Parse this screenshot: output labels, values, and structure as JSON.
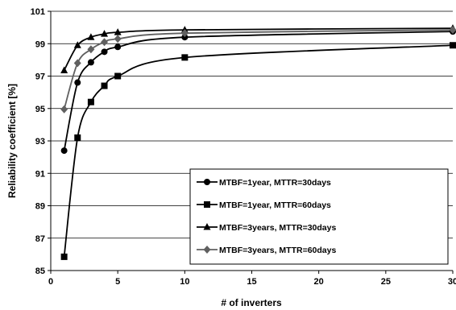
{
  "chart_data": {
    "type": "line",
    "xlabel": "# of inverters",
    "ylabel": "Reliability coefficient [%]",
    "xlim": [
      0,
      30
    ],
    "ylim": [
      85,
      101
    ],
    "xticks": [
      0,
      5,
      10,
      15,
      20,
      25,
      30
    ],
    "yticks": [
      85,
      87,
      89,
      91,
      93,
      95,
      97,
      99,
      101
    ],
    "grid": "horizontal",
    "legend_position": "bottom-right",
    "series": [
      {
        "name": "MTBF=1year, MTTR=30days",
        "marker": "circle",
        "color": "#000000",
        "x": [
          1,
          2,
          3,
          4,
          5,
          10,
          30
        ],
        "y": [
          92.4,
          96.6,
          97.85,
          98.5,
          98.8,
          99.4,
          99.75
        ]
      },
      {
        "name": "MTBF=1year, MTTR=60days",
        "marker": "square",
        "color": "#000000",
        "x": [
          1,
          2,
          3,
          4,
          5,
          10,
          30
        ],
        "y": [
          85.85,
          93.2,
          95.4,
          96.4,
          97.0,
          98.15,
          98.9
        ]
      },
      {
        "name": "MTBF=3years, MTTR=30days",
        "marker": "triangle",
        "color": "#000000",
        "x": [
          1,
          2,
          3,
          4,
          5,
          10,
          30
        ],
        "y": [
          97.35,
          98.9,
          99.4,
          99.6,
          99.7,
          99.85,
          99.95
        ]
      },
      {
        "name": "MTBF=3years, MTTR=60days",
        "marker": "diamond",
        "color": "#606060",
        "x": [
          1,
          2,
          3,
          4,
          5,
          10,
          30
        ],
        "y": [
          94.95,
          97.8,
          98.65,
          99.1,
          99.3,
          99.65,
          99.85
        ]
      }
    ]
  }
}
